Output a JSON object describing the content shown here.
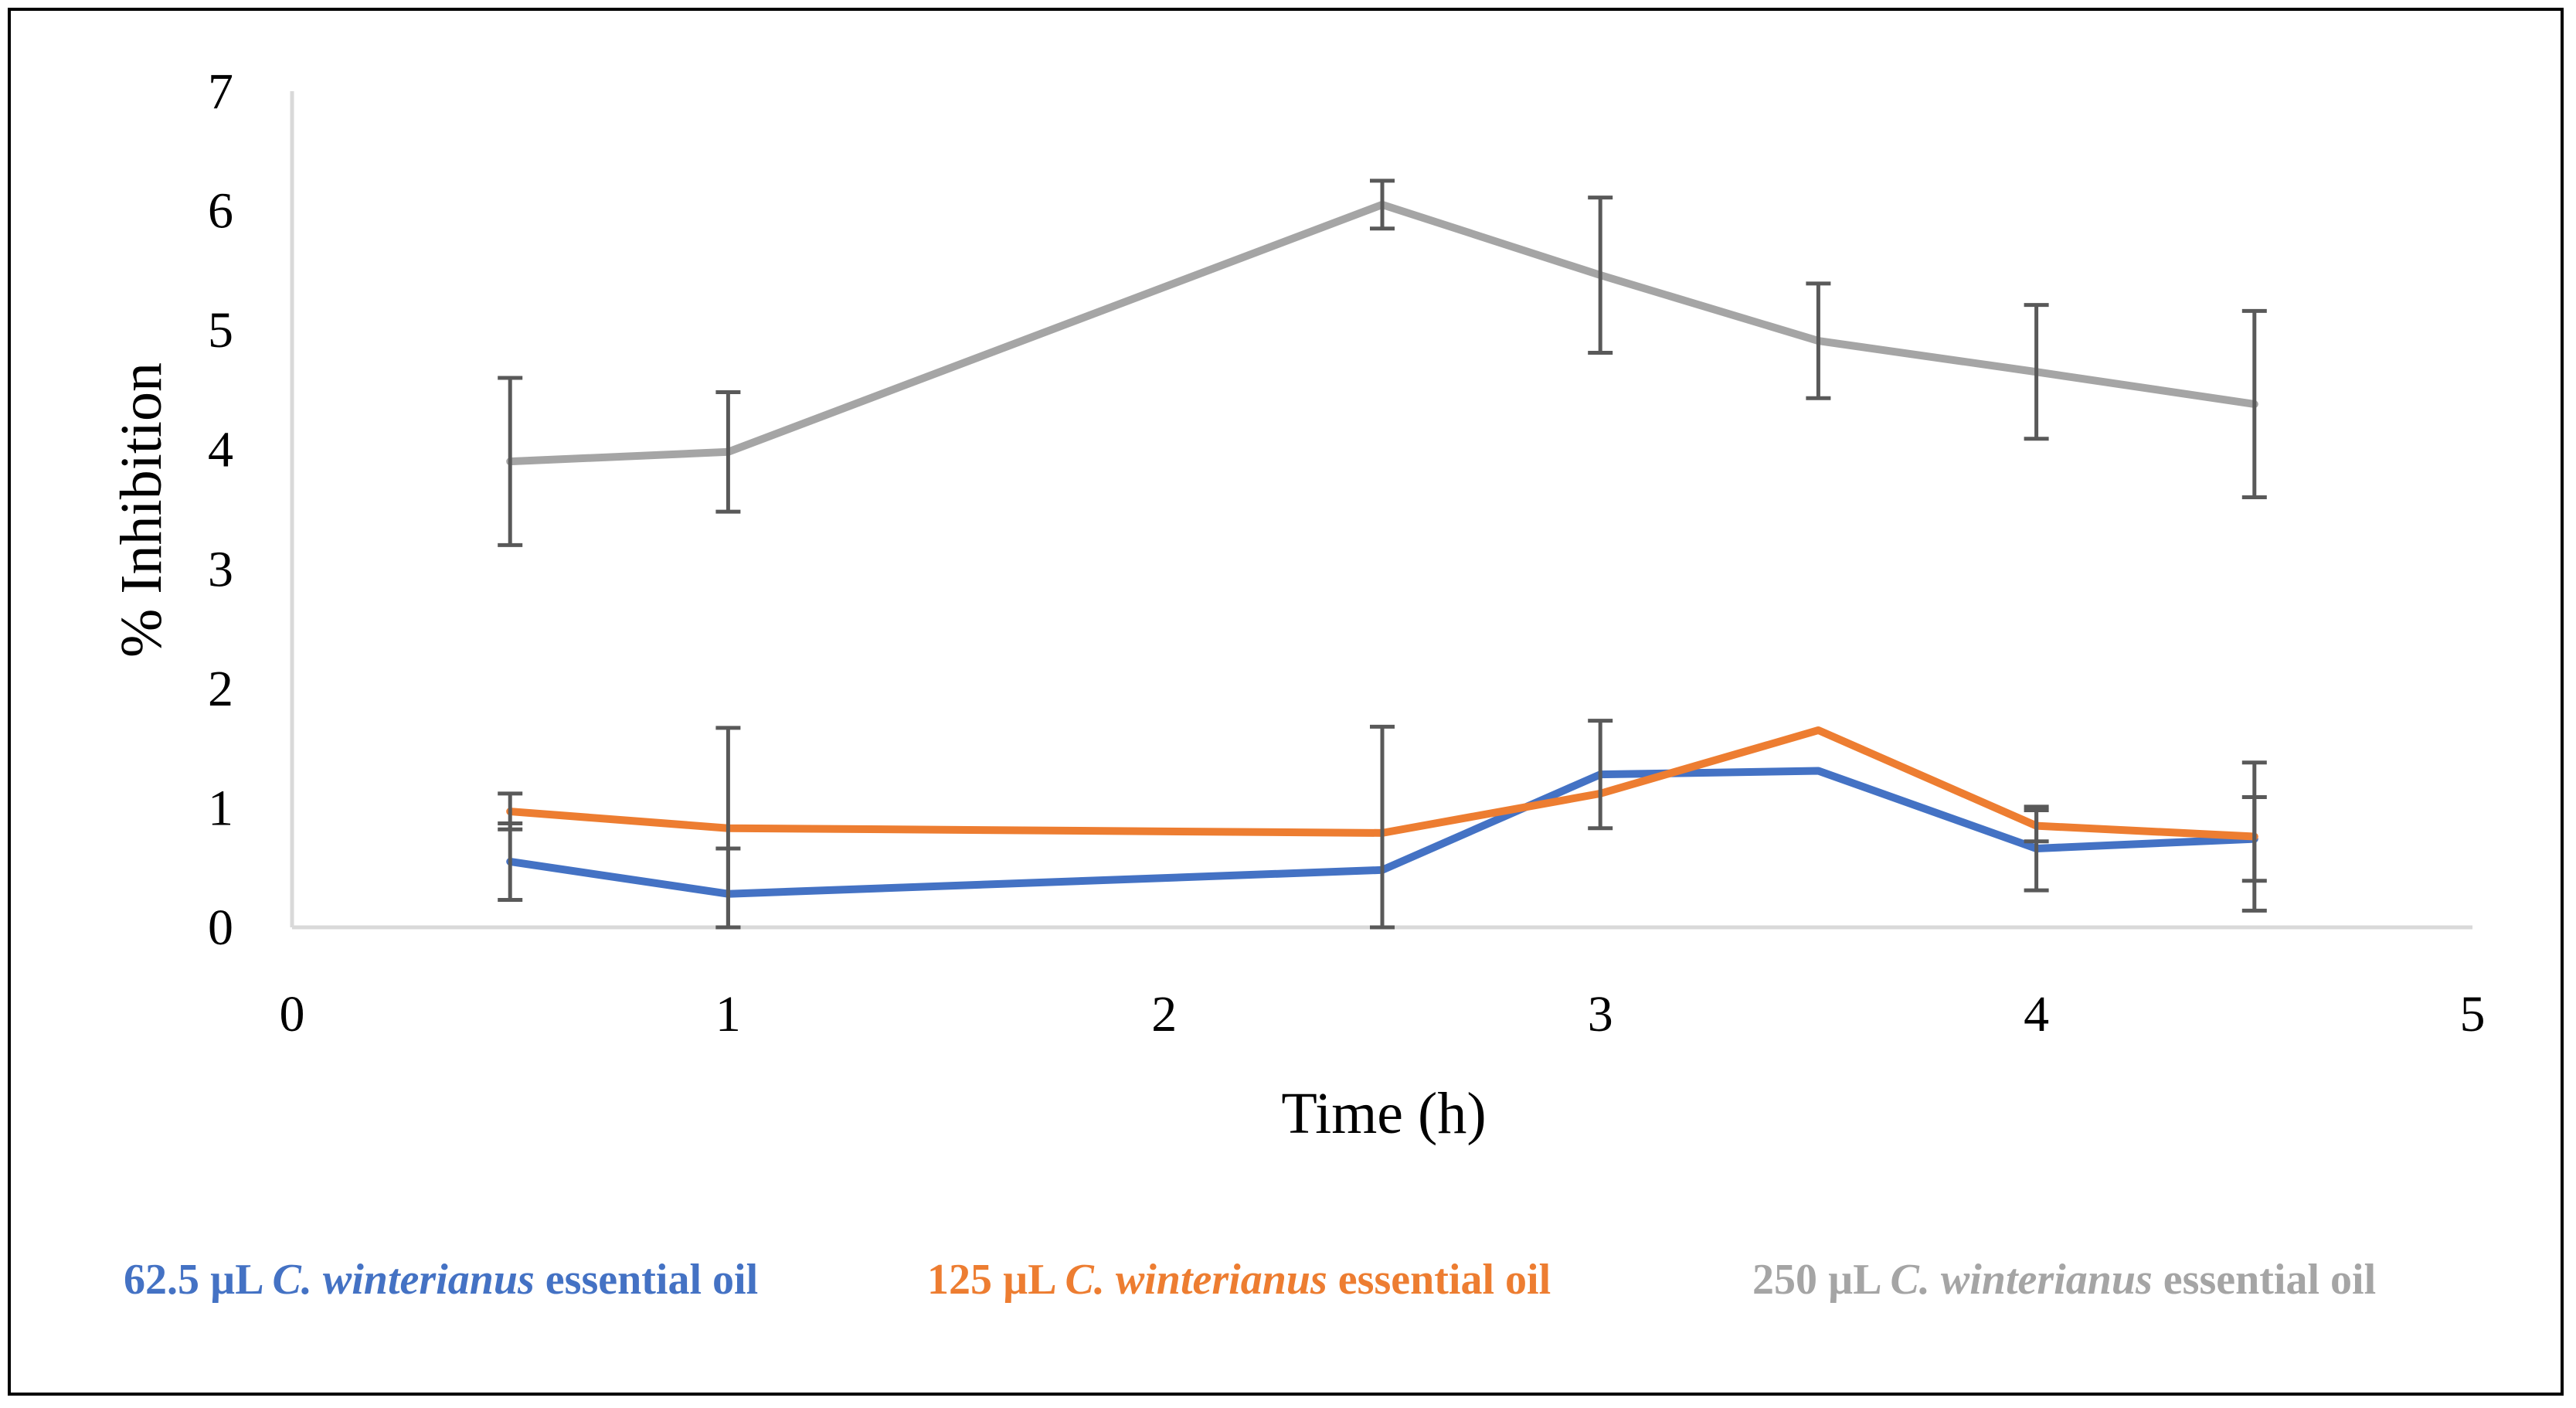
{
  "chart_data": {
    "type": "line",
    "xlabel": "Time (h)",
    "ylabel": "% Inhibition",
    "xlim": [
      0,
      5
    ],
    "ylim": [
      0,
      7
    ],
    "x_ticks": [
      "0",
      "1",
      "2",
      "3",
      "4",
      "5"
    ],
    "y_ticks": [
      "0",
      "1",
      "2",
      "3",
      "4",
      "5",
      "6",
      "7"
    ],
    "grid": false,
    "legend_position": "bottom",
    "x": [
      0.5,
      1,
      2.5,
      3,
      3.5,
      4,
      4.5
    ],
    "series": [
      {
        "name": "62.5 µL C. winterianus essential oil",
        "dose": "62.5 µL",
        "species": "C. winterianus",
        "suffix": "essential oil",
        "color": "#4472C4",
        "values": [
          0.55,
          0.28,
          0.48,
          1.28,
          1.31,
          0.66,
          0.74
        ],
        "error": [
          0.32,
          0.38,
          1.2,
          0.45,
          0.0,
          0.35,
          0.35
        ]
      },
      {
        "name": "125 µL C. winterianus essential oil",
        "dose": "125 µL",
        "species": "C. winterianus",
        "suffix": "essential oil",
        "color": "#ED7D31",
        "values": [
          0.97,
          0.83,
          0.79,
          1.12,
          1.65,
          0.85,
          0.76
        ],
        "error": [
          0.15,
          0.84,
          0.0,
          0.0,
          0.0,
          0.13,
          0.62
        ]
      },
      {
        "name": "250 µL C. winterianus essential oil",
        "dose": "250 µL",
        "species": "C. winterianus",
        "suffix": "essential oil",
        "color": "#A5A5A5",
        "values": [
          3.9,
          3.98,
          6.05,
          5.46,
          4.91,
          4.65,
          4.38
        ],
        "error": [
          0.7,
          0.5,
          0.2,
          0.65,
          0.48,
          0.56,
          0.78
        ]
      }
    ]
  }
}
